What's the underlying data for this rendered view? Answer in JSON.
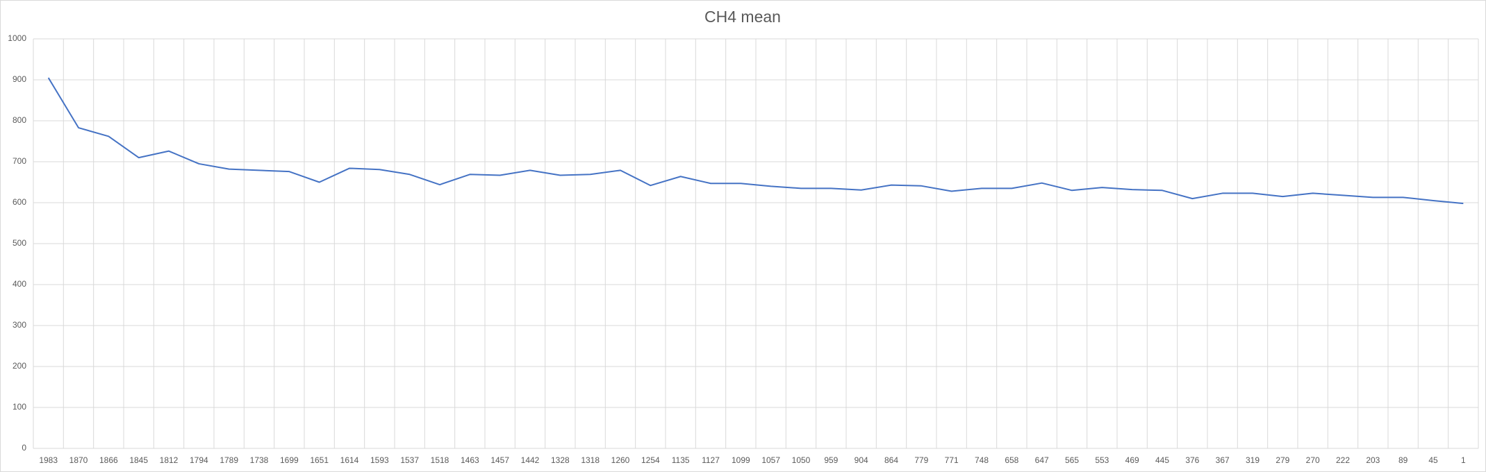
{
  "chart_data": {
    "type": "line",
    "title": "CH4 mean",
    "categories": [
      "1983",
      "1870",
      "1866",
      "1845",
      "1812",
      "1794",
      "1789",
      "1738",
      "1699",
      "1651",
      "1614",
      "1593",
      "1537",
      "1518",
      "1463",
      "1457",
      "1442",
      "1328",
      "1318",
      "1260",
      "1254",
      "1135",
      "1127",
      "1099",
      "1057",
      "1050",
      "959",
      "904",
      "864",
      "779",
      "771",
      "748",
      "658",
      "647",
      "565",
      "553",
      "469",
      "445",
      "376",
      "367",
      "319",
      "279",
      "270",
      "222",
      "203",
      "89",
      "45",
      "1"
    ],
    "series": [
      {
        "name": "CH4 mean",
        "color": "#4472c4",
        "values": [
          905,
          783,
          762,
          710,
          726,
          695,
          682,
          679,
          676,
          650,
          684,
          681,
          669,
          644,
          669,
          667,
          679,
          667,
          669,
          679,
          642,
          664,
          647,
          647,
          640,
          635,
          635,
          631,
          643,
          641,
          628,
          635,
          635,
          648,
          630,
          637,
          632,
          630,
          610,
          623,
          623,
          615,
          623,
          618,
          613,
          613,
          605,
          598
        ]
      }
    ],
    "ylim": [
      0,
      1000
    ],
    "yticks": [
      0,
      100,
      200,
      300,
      400,
      500,
      600,
      700,
      800,
      900,
      1000
    ],
    "grid": true
  }
}
